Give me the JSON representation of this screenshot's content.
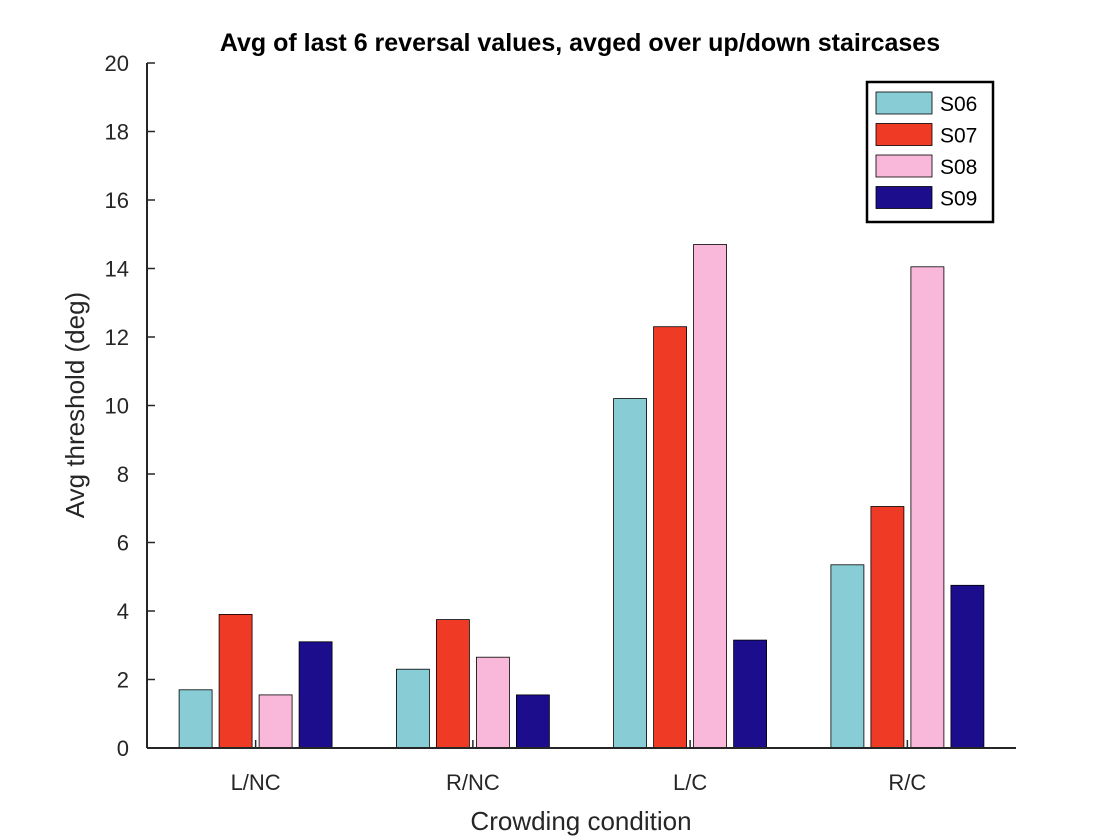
{
  "chart_data": {
    "type": "bar",
    "title": "Avg of last 6 reversal values, avged over up/down staircases",
    "xlabel": "Crowding condition",
    "ylabel": "Avg threshold (deg)",
    "ylim": [
      0,
      20
    ],
    "yticks": [
      0,
      2,
      4,
      6,
      8,
      10,
      12,
      14,
      16,
      18,
      20
    ],
    "categories": [
      "L/NC",
      "R/NC",
      "L/C",
      "R/C"
    ],
    "series": [
      {
        "name": "S06",
        "color": "#88cdd6",
        "values": [
          1.7,
          2.3,
          10.2,
          5.35
        ]
      },
      {
        "name": "S07",
        "color": "#ef3b26",
        "values": [
          3.9,
          3.75,
          12.3,
          7.05
        ]
      },
      {
        "name": "S08",
        "color": "#f9b8d9",
        "values": [
          1.55,
          2.65,
          14.7,
          14.05
        ]
      },
      {
        "name": "S09",
        "color": "#1b0d8c",
        "values": [
          3.1,
          1.55,
          3.15,
          4.75
        ]
      }
    ],
    "legend": {
      "placement": "top-right",
      "box": true
    },
    "grid": false
  }
}
